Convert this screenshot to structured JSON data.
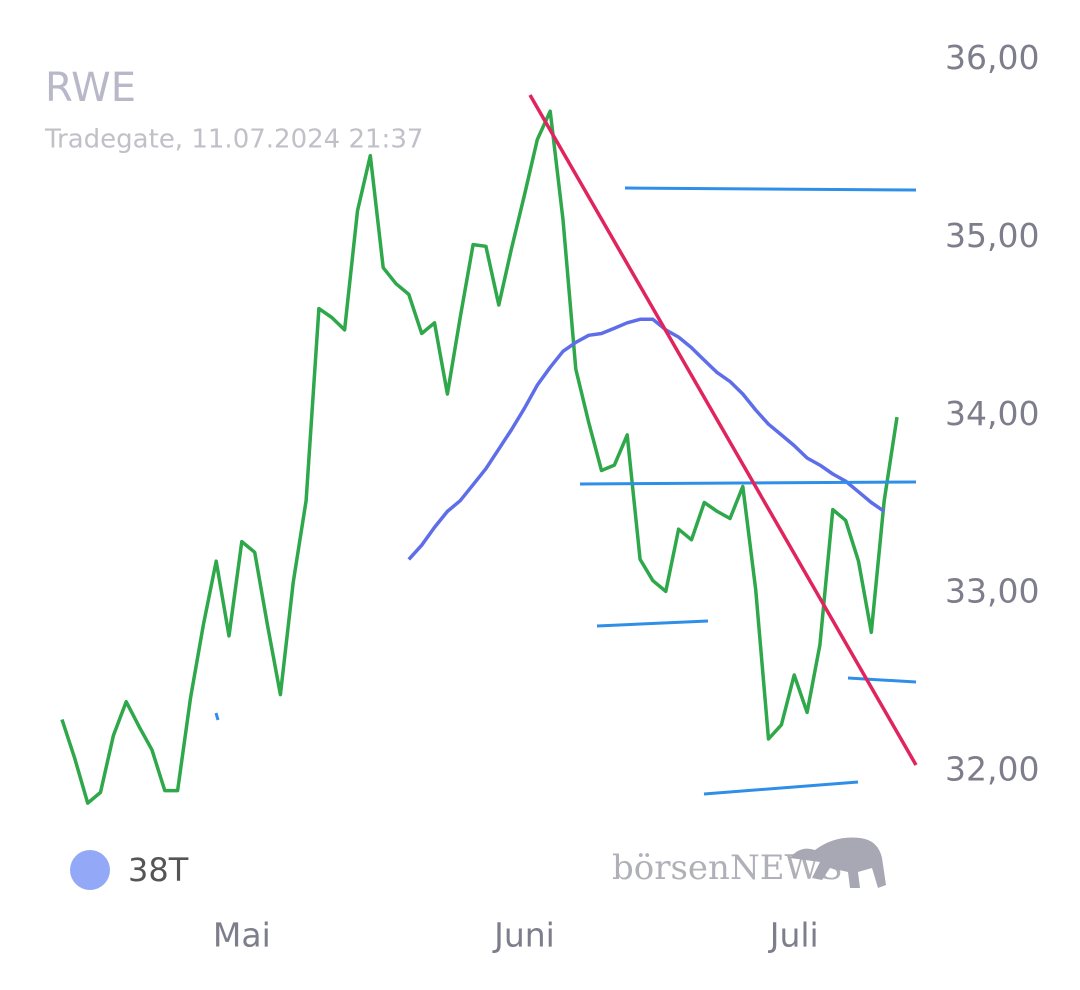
{
  "chart_data": {
    "type": "line",
    "title": "RWE",
    "subtitle": "Tradegate, 11.07.2024 21:37",
    "watermark": "börsenNEWS",
    "categories": [
      null,
      null,
      null,
      null,
      null,
      null,
      null,
      null,
      null,
      null,
      null,
      null,
      null,
      null,
      "Mai",
      null,
      null,
      null,
      null,
      null,
      null,
      null,
      null,
      null,
      null,
      null,
      null,
      null,
      null,
      null,
      null,
      null,
      null,
      null,
      null,
      null,
      "Juni",
      null,
      null,
      null,
      null,
      null,
      null,
      null,
      null,
      null,
      null,
      null,
      null,
      null,
      null,
      null,
      null,
      null,
      null,
      null,
      null,
      "Juli",
      null,
      null,
      null,
      null,
      null,
      null,
      null,
      null
    ],
    "series": [
      {
        "color": "#2ea84a",
        "values": [
          32.29,
          32.07,
          31.82,
          31.88,
          32.2,
          32.39,
          32.25,
          32.12,
          31.89,
          31.89,
          32.41,
          32.82,
          33.18,
          32.76,
          33.29,
          33.23,
          32.82,
          32.43,
          33.06,
          33.52,
          34.6,
          34.55,
          34.48,
          35.15,
          35.46,
          34.83,
          34.74,
          34.68,
          34.46,
          34.52,
          34.12,
          34.55,
          34.96,
          34.95,
          34.62,
          34.94,
          35.24,
          35.55,
          35.71,
          35.1,
          34.26,
          33.96,
          33.69,
          33.72,
          33.89,
          33.19,
          33.07,
          33.01,
          33.36,
          33.3,
          33.51,
          33.46,
          33.42,
          33.6,
          33.02,
          32.18,
          32.26,
          32.54,
          32.33,
          32.71,
          33.47,
          33.41,
          33.18,
          32.78,
          33.52,
          33.99
        ]
      },
      {
        "name": "38T",
        "color": "#5e6ee8",
        "legend_color": "#94a8f8",
        "values": [
          null,
          null,
          null,
          null,
          null,
          null,
          null,
          null,
          null,
          null,
          null,
          null,
          null,
          null,
          null,
          null,
          null,
          null,
          null,
          null,
          null,
          null,
          null,
          null,
          null,
          null,
          null,
          33.19,
          33.27,
          33.37,
          33.46,
          33.52,
          33.61,
          33.7,
          33.81,
          33.92,
          34.04,
          34.17,
          34.27,
          34.36,
          34.41,
          34.45,
          34.46,
          34.49,
          34.52,
          34.54,
          34.54,
          34.48,
          34.44,
          34.38,
          34.31,
          34.24,
          34.19,
          34.12,
          34.03,
          33.95,
          33.89,
          33.83,
          33.76,
          33.72,
          33.67,
          33.63,
          33.57,
          33.51,
          33.46,
          null
        ]
      }
    ],
    "ylim": [
      31.5,
      36.2
    ],
    "yticks": [
      {
        "value": 32,
        "label": "32,00"
      },
      {
        "value": 33,
        "label": "33,00"
      },
      {
        "value": 34,
        "label": "34,00"
      },
      {
        "value": 35,
        "label": "35,00"
      },
      {
        "value": 36,
        "label": "36,00"
      }
    ],
    "grid": false
  }
}
